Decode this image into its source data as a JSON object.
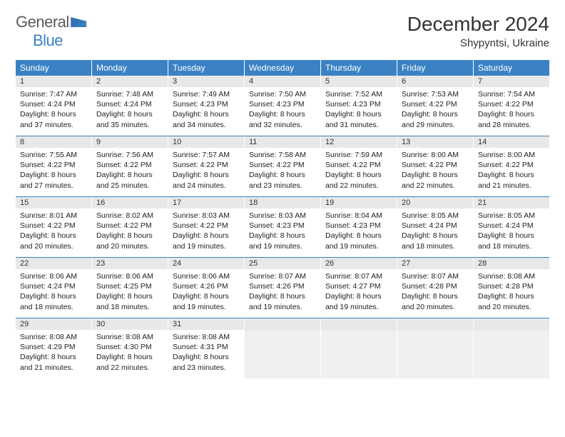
{
  "logo": {
    "text1": "General",
    "text2": "Blue"
  },
  "title": "December 2024",
  "location": "Shypyntsi, Ukraine",
  "colors": {
    "header_bg": "#3b82c4",
    "header_text": "#ffffff",
    "daynum_bg": "#e8e8e8",
    "empty_bg": "#f0f0f0",
    "rule": "#3b82c4",
    "body_text": "#222222",
    "title_text": "#333333"
  },
  "weekdays": [
    "Sunday",
    "Monday",
    "Tuesday",
    "Wednesday",
    "Thursday",
    "Friday",
    "Saturday"
  ],
  "weeks": [
    [
      {
        "n": "1",
        "sr": "7:47 AM",
        "ss": "4:24 PM",
        "dl": "8 hours and 37 minutes."
      },
      {
        "n": "2",
        "sr": "7:48 AM",
        "ss": "4:24 PM",
        "dl": "8 hours and 35 minutes."
      },
      {
        "n": "3",
        "sr": "7:49 AM",
        "ss": "4:23 PM",
        "dl": "8 hours and 34 minutes."
      },
      {
        "n": "4",
        "sr": "7:50 AM",
        "ss": "4:23 PM",
        "dl": "8 hours and 32 minutes."
      },
      {
        "n": "5",
        "sr": "7:52 AM",
        "ss": "4:23 PM",
        "dl": "8 hours and 31 minutes."
      },
      {
        "n": "6",
        "sr": "7:53 AM",
        "ss": "4:22 PM",
        "dl": "8 hours and 29 minutes."
      },
      {
        "n": "7",
        "sr": "7:54 AM",
        "ss": "4:22 PM",
        "dl": "8 hours and 28 minutes."
      }
    ],
    [
      {
        "n": "8",
        "sr": "7:55 AM",
        "ss": "4:22 PM",
        "dl": "8 hours and 27 minutes."
      },
      {
        "n": "9",
        "sr": "7:56 AM",
        "ss": "4:22 PM",
        "dl": "8 hours and 25 minutes."
      },
      {
        "n": "10",
        "sr": "7:57 AM",
        "ss": "4:22 PM",
        "dl": "8 hours and 24 minutes."
      },
      {
        "n": "11",
        "sr": "7:58 AM",
        "ss": "4:22 PM",
        "dl": "8 hours and 23 minutes."
      },
      {
        "n": "12",
        "sr": "7:59 AM",
        "ss": "4:22 PM",
        "dl": "8 hours and 22 minutes."
      },
      {
        "n": "13",
        "sr": "8:00 AM",
        "ss": "4:22 PM",
        "dl": "8 hours and 22 minutes."
      },
      {
        "n": "14",
        "sr": "8:00 AM",
        "ss": "4:22 PM",
        "dl": "8 hours and 21 minutes."
      }
    ],
    [
      {
        "n": "15",
        "sr": "8:01 AM",
        "ss": "4:22 PM",
        "dl": "8 hours and 20 minutes."
      },
      {
        "n": "16",
        "sr": "8:02 AM",
        "ss": "4:22 PM",
        "dl": "8 hours and 20 minutes."
      },
      {
        "n": "17",
        "sr": "8:03 AM",
        "ss": "4:22 PM",
        "dl": "8 hours and 19 minutes."
      },
      {
        "n": "18",
        "sr": "8:03 AM",
        "ss": "4:23 PM",
        "dl": "8 hours and 19 minutes."
      },
      {
        "n": "19",
        "sr": "8:04 AM",
        "ss": "4:23 PM",
        "dl": "8 hours and 19 minutes."
      },
      {
        "n": "20",
        "sr": "8:05 AM",
        "ss": "4:24 PM",
        "dl": "8 hours and 18 minutes."
      },
      {
        "n": "21",
        "sr": "8:05 AM",
        "ss": "4:24 PM",
        "dl": "8 hours and 18 minutes."
      }
    ],
    [
      {
        "n": "22",
        "sr": "8:06 AM",
        "ss": "4:24 PM",
        "dl": "8 hours and 18 minutes."
      },
      {
        "n": "23",
        "sr": "8:06 AM",
        "ss": "4:25 PM",
        "dl": "8 hours and 18 minutes."
      },
      {
        "n": "24",
        "sr": "8:06 AM",
        "ss": "4:26 PM",
        "dl": "8 hours and 19 minutes."
      },
      {
        "n": "25",
        "sr": "8:07 AM",
        "ss": "4:26 PM",
        "dl": "8 hours and 19 minutes."
      },
      {
        "n": "26",
        "sr": "8:07 AM",
        "ss": "4:27 PM",
        "dl": "8 hours and 19 minutes."
      },
      {
        "n": "27",
        "sr": "8:07 AM",
        "ss": "4:28 PM",
        "dl": "8 hours and 20 minutes."
      },
      {
        "n": "28",
        "sr": "8:08 AM",
        "ss": "4:28 PM",
        "dl": "8 hours and 20 minutes."
      }
    ],
    [
      {
        "n": "29",
        "sr": "8:08 AM",
        "ss": "4:29 PM",
        "dl": "8 hours and 21 minutes."
      },
      {
        "n": "30",
        "sr": "8:08 AM",
        "ss": "4:30 PM",
        "dl": "8 hours and 22 minutes."
      },
      {
        "n": "31",
        "sr": "8:08 AM",
        "ss": "4:31 PM",
        "dl": "8 hours and 23 minutes."
      },
      null,
      null,
      null,
      null
    ]
  ],
  "labels": {
    "sunrise": "Sunrise:",
    "sunset": "Sunset:",
    "daylight": "Daylight:"
  }
}
